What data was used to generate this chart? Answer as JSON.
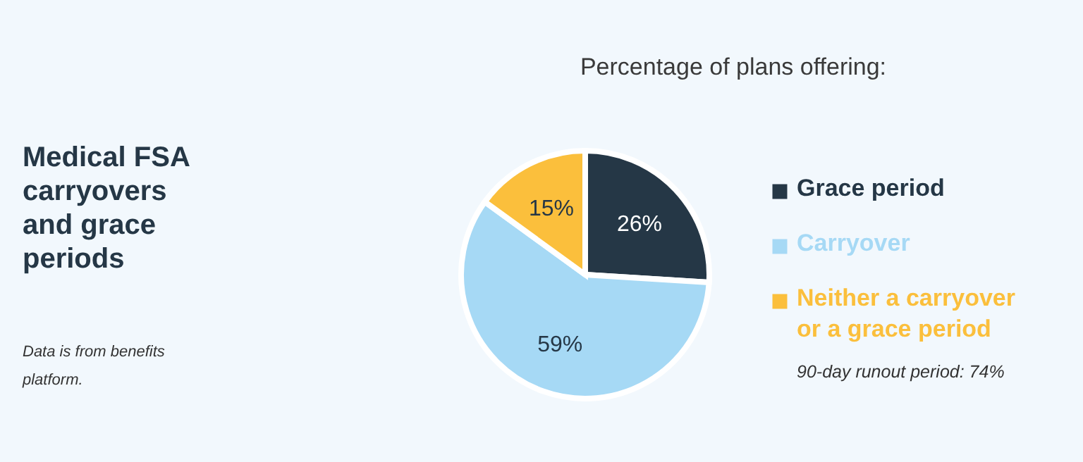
{
  "chart_data": {
    "type": "pie",
    "title": "Medical FSA carryovers and grace periods",
    "subtitle": "Percentage of plans offering:",
    "categories": [
      "Grace period",
      "Carryover",
      "Neither a carryover or a grace period"
    ],
    "values": [
      26,
      59,
      15
    ],
    "value_labels": [
      "26%",
      "59%",
      "15%"
    ],
    "colors": [
      "#253746",
      "#a6d9f5",
      "#fbbf3c"
    ],
    "legend": "right",
    "annotations": [
      "Data is from benefits platform.",
      "90-day runout period: 74%"
    ]
  }
}
